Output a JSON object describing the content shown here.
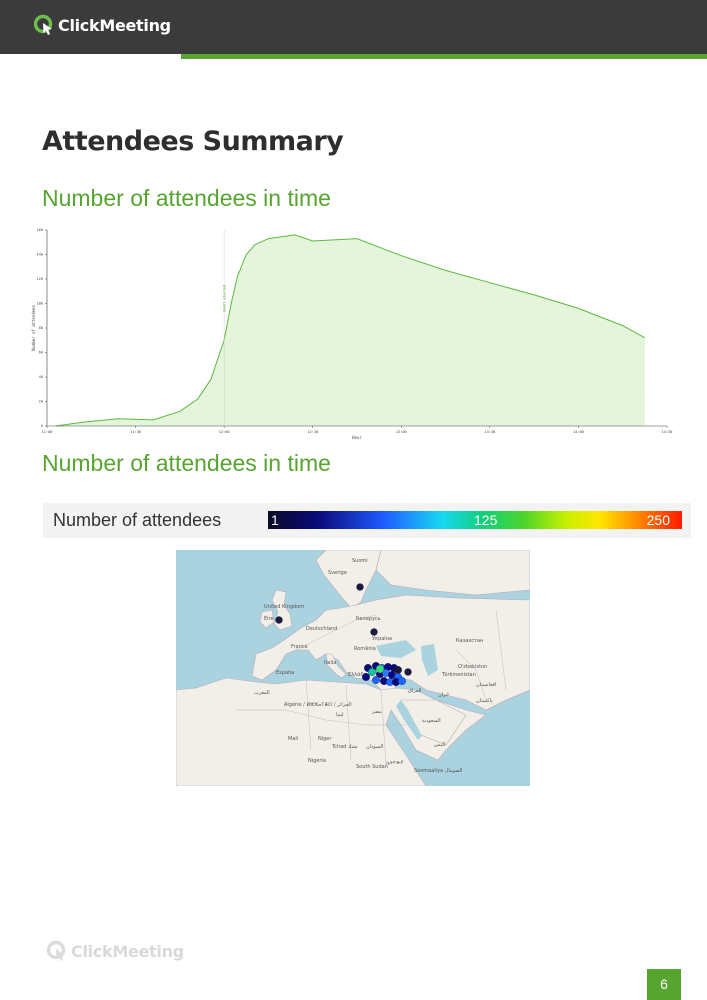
{
  "header": {
    "brand": "ClickMeeting",
    "accent_color": "#57a431",
    "bar_color": "#3c3b3b",
    "logo_icon": "clickmeeting-logo-icon"
  },
  "page": {
    "title": "Attendees Summary",
    "section1_heading": "Number of attendees in time",
    "section2_heading": "Number of attendees in time",
    "page_number": "6"
  },
  "chart_data": {
    "type": "area",
    "xlabel": "Hour",
    "ylabel": "Number of attendees",
    "xlim": [
      0,
      7
    ],
    "ylim": [
      0,
      160
    ],
    "x_tick_labels": [
      "11:00",
      "11:30",
      "12:00",
      "12:30",
      "13:00",
      "13:30",
      "14:00",
      "14:30"
    ],
    "y_ticks": [
      0,
      20,
      40,
      60,
      80,
      100,
      120,
      140,
      160
    ],
    "event_marker": {
      "x": 2.0,
      "label": "Event started"
    },
    "x": [
      0.1,
      0.4,
      0.8,
      1.2,
      1.5,
      1.7,
      1.85,
      2.0,
      2.08,
      2.15,
      2.25,
      2.35,
      2.5,
      2.8,
      3.0,
      3.5,
      4.0,
      4.5,
      5.0,
      5.5,
      6.0,
      6.5,
      6.75
    ],
    "values": [
      0,
      3,
      6,
      5,
      12,
      22,
      38,
      70,
      100,
      122,
      140,
      148,
      153,
      156,
      151,
      153,
      139,
      127,
      117,
      107,
      96,
      82,
      72
    ],
    "colors": {
      "line": "#5cb83c",
      "fill": "#e4f5dc",
      "axis": "#444444"
    }
  },
  "legend": {
    "label": "Number of attendees",
    "min": "1",
    "mid": "125",
    "max": "250"
  },
  "map": {
    "labels": {
      "sweden": "Sverige",
      "finland": "Suomi",
      "uk": "United Kingdom",
      "ireland": "Éire",
      "germany": "Deutschland",
      "belarus": "Беларусь",
      "ukraine": "Україна",
      "france": "France",
      "romania": "România",
      "kazakhstan": "Казахстан",
      "uzbekistan": "O'zbekiston",
      "turkmenistan": "Türkmenistan",
      "spain": "España",
      "italia": "Italia",
      "greece": "Ελλάδα",
      "iraq": "العراق",
      "iran": "ایران",
      "afghanistan": "افغانستان",
      "algeria": "Algérie / ⵍⵣⵣⴰⵢⴻⵔ / الجزائر",
      "libya": "ليبيا",
      "egypt": "مصر",
      "saudi": "السعودية",
      "mali": "Mali",
      "niger": "Niger",
      "chad": "Tchad تشاد",
      "sudan": "السودان",
      "yemen": "اليمن",
      "nigeria": "Nigeria",
      "south_sudan": "South Sudan",
      "ethiopia": "ኢትዮጵያ",
      "somalia": "Soomaaliya الصومال",
      "morocco": "المغرب",
      "pakistan": "پاکستان"
    }
  },
  "footer": {
    "brand": "ClickMeeting"
  }
}
